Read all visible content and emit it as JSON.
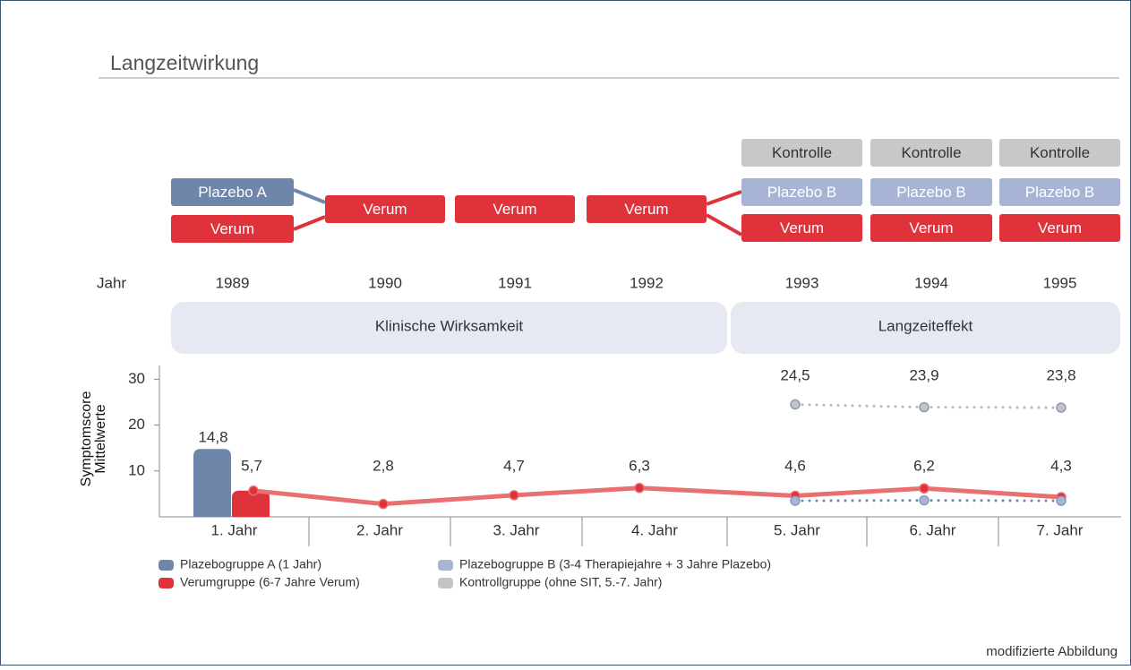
{
  "title": "Langzeitwirkung",
  "diagram": {
    "year_label": "Jahr",
    "columns": [
      {
        "year": "1989",
        "boxes": [
          {
            "label": "Plazebo A",
            "color": "#6e86aa",
            "text_color": "#ffffff"
          },
          {
            "label": "Verum",
            "color": "#e0323a",
            "text_color": "#ffffff"
          }
        ]
      },
      {
        "year": "1990",
        "boxes": [
          {
            "label": "Verum",
            "color": "#e0323a",
            "text_color": "#ffffff"
          }
        ]
      },
      {
        "year": "1991",
        "boxes": [
          {
            "label": "Verum",
            "color": "#e0323a",
            "text_color": "#ffffff"
          }
        ]
      },
      {
        "year": "1992",
        "boxes": [
          {
            "label": "Verum",
            "color": "#e0323a",
            "text_color": "#ffffff"
          }
        ]
      },
      {
        "year": "1993",
        "boxes": [
          {
            "label": "Kontrolle",
            "color": "#c8c8c8",
            "text_color": "#333333"
          },
          {
            "label": "Plazebo B",
            "color": "#a8b4d4",
            "text_color": "#ffffff"
          },
          {
            "label": "Verum",
            "color": "#e0323a",
            "text_color": "#ffffff"
          }
        ]
      },
      {
        "year": "1994",
        "boxes": [
          {
            "label": "Kontrolle",
            "color": "#c8c8c8",
            "text_color": "#333333"
          },
          {
            "label": "Plazebo B",
            "color": "#a8b4d4",
            "text_color": "#ffffff"
          },
          {
            "label": "Verum",
            "color": "#e0323a",
            "text_color": "#ffffff"
          }
        ]
      },
      {
        "year": "1995",
        "boxes": [
          {
            "label": "Kontrolle",
            "color": "#c8c8c8",
            "text_color": "#333333"
          },
          {
            "label": "Plazebo B",
            "color": "#a8b4d4",
            "text_color": "#ffffff"
          },
          {
            "label": "Verum",
            "color": "#e0323a",
            "text_color": "#ffffff"
          }
        ]
      }
    ],
    "phases": [
      "Klinische Wirksamkeit",
      "Langzeiteffekt"
    ]
  },
  "chart_data": {
    "type": "line",
    "ylabel": [
      "Symptomscore",
      "Mittelwerte"
    ],
    "categories": [
      "1. Jahr",
      "2. Jahr",
      "3. Jahr",
      "4. Jahr",
      "5. Jahr",
      "6. Jahr",
      "7. Jahr"
    ],
    "ylim": [
      0,
      33
    ],
    "yticks": [
      10,
      20,
      30
    ],
    "series": [
      {
        "name": "Plazebogruppe A (1 Jahr)",
        "color": "#6e86aa",
        "values": [
          14.8,
          null,
          null,
          null,
          null,
          null,
          null
        ],
        "value_labels": [
          "14,8",
          null,
          null,
          null,
          null,
          null,
          null
        ]
      },
      {
        "name": "Verumgruppe (6-7 Jahre Verum)",
        "color": "#e0323a",
        "values": [
          5.7,
          2.8,
          4.7,
          6.3,
          4.6,
          6.2,
          4.3
        ],
        "value_labels": [
          "5,7",
          "2,8",
          "4,7",
          "6,3",
          "4,6",
          "6,2",
          "4,3"
        ]
      },
      {
        "name": "Plazebogruppe B (3-4 Therapiejahre + 3 Jahre Plazebo)",
        "color": "#a8b4d4",
        "line_style": "dotted",
        "values": [
          null,
          null,
          null,
          null,
          3.5,
          3.6,
          3.5
        ]
      },
      {
        "name": "Kontrollgruppe (ohne SIT, 5.-7. Jahr)",
        "color": "#c4c4c4",
        "line_style": "dotted",
        "values": [
          null,
          null,
          null,
          null,
          24.5,
          23.9,
          23.8
        ],
        "value_labels": [
          null,
          null,
          null,
          null,
          "24,5",
          "23,9",
          "23,8"
        ]
      }
    ]
  },
  "footer": "modifizierte Abbildung"
}
